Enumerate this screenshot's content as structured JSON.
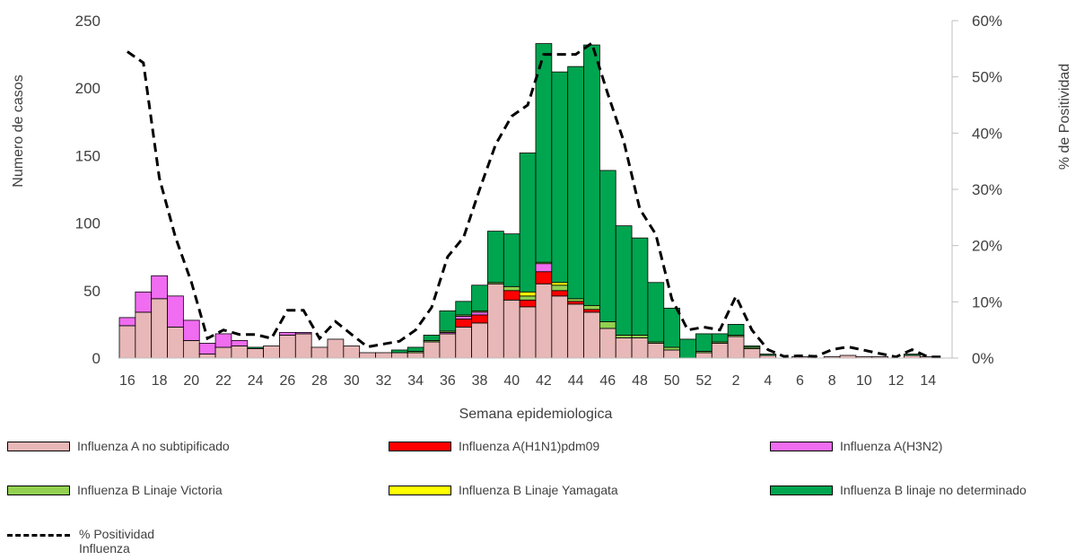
{
  "colors": {
    "influenza_a_no_subtip": "#e8b7b7",
    "h1n1": "#ff0000",
    "h3n2": "#f06cf0",
    "victoria": "#92d050",
    "yamagata": "#ffff00",
    "b_no_det": "#00a550",
    "line": "#000000"
  },
  "legend": [
    {
      "key": "a_nosub",
      "label": "Influenza A no subtipificado",
      "color": "#e8b7b7",
      "kind": "swatch"
    },
    {
      "key": "h1n1",
      "label": "Influenza A(H1N1)pdm09",
      "color": "#ff0000",
      "kind": "swatch"
    },
    {
      "key": "h3n2",
      "label": "Influenza A(H3N2)",
      "color": "#f06cf0",
      "kind": "swatch"
    },
    {
      "key": "victoria",
      "label": "Influenza B Linaje Victoria",
      "color": "#92d050",
      "kind": "swatch"
    },
    {
      "key": "yamagata",
      "label": "Influenza B Linaje Yamagata",
      "color": "#ffff00",
      "kind": "swatch"
    },
    {
      "key": "bnd",
      "label": "Influenza B linaje no determinado",
      "color": "#00a550",
      "kind": "swatch"
    },
    {
      "key": "pos",
      "label": "% Positividad",
      "label2": "Influenza",
      "kind": "dash"
    }
  ],
  "chart_data": {
    "type": "bar",
    "stacked": true,
    "xlabel": "Semana epidemiologica",
    "ylabel": "Numero de casos",
    "y2label": "% de Positividad",
    "ylim": [
      0,
      250
    ],
    "y2lim": [
      0,
      60
    ],
    "yticks": [
      0,
      50,
      100,
      150,
      200,
      250
    ],
    "y2ticks": [
      "0%",
      "10%",
      "20%",
      "30%",
      "40%",
      "50%",
      "60%"
    ],
    "categories": [
      "16",
      "17",
      "18",
      "19",
      "20",
      "21",
      "22",
      "23",
      "24",
      "25",
      "26",
      "27",
      "28",
      "29",
      "30",
      "31",
      "32",
      "33",
      "34",
      "35",
      "36",
      "37",
      "38",
      "39",
      "40",
      "41",
      "42",
      "43",
      "44",
      "45",
      "46",
      "47",
      "48",
      "49",
      "50",
      "51",
      "52",
      "1",
      "2",
      "3",
      "4",
      "5",
      "6",
      "7",
      "8",
      "9",
      "10",
      "11",
      "12",
      "13",
      "14",
      "15"
    ],
    "x_tick_labels": [
      "16",
      "18",
      "20",
      "22",
      "24",
      "26",
      "28",
      "30",
      "32",
      "34",
      "36",
      "38",
      "40",
      "42",
      "44",
      "46",
      "48",
      "50",
      "52",
      "2",
      "4",
      "6",
      "8",
      "10",
      "12",
      "14"
    ],
    "series": [
      {
        "name": "Influenza A no subtipificado",
        "color": "#e8b7b7",
        "values": [
          24,
          34,
          44,
          23,
          13,
          3,
          8,
          9,
          7,
          9,
          17,
          18,
          8,
          14,
          9,
          4,
          4,
          4,
          4,
          12,
          18,
          23,
          26,
          55,
          43,
          38,
          55,
          46,
          40,
          34,
          22,
          15,
          15,
          11,
          6,
          0,
          4,
          11,
          16,
          7,
          2,
          0,
          1,
          0,
          1,
          2,
          1,
          1,
          0,
          2,
          1,
          0
        ]
      },
      {
        "name": "Influenza A(H1N1)pdm09",
        "color": "#ff0000",
        "values": [
          0,
          0,
          0,
          0,
          0,
          0,
          0,
          0,
          0,
          0,
          0,
          0,
          0,
          0,
          0,
          0,
          0,
          0,
          0,
          0,
          0,
          6,
          6,
          0,
          7,
          5,
          9,
          4,
          2,
          2,
          0,
          0,
          0,
          0,
          0,
          0,
          0,
          0,
          0,
          0,
          0,
          0,
          0,
          0,
          0,
          0,
          0,
          0,
          0,
          0,
          0,
          0
        ]
      },
      {
        "name": "Influenza A(H3N2)",
        "color": "#f06cf0",
        "values": [
          6,
          15,
          17,
          23,
          15,
          8,
          10,
          4,
          0,
          0,
          2,
          1,
          0,
          0,
          0,
          0,
          0,
          0,
          0,
          0,
          1,
          2,
          2,
          0,
          0,
          0,
          6,
          0,
          0,
          0,
          0,
          0,
          0,
          0,
          0,
          0,
          0,
          0,
          0,
          0,
          0,
          0,
          0,
          0,
          0,
          0,
          0,
          0,
          0,
          0,
          0,
          0
        ]
      },
      {
        "name": "Influenza B Linaje Victoria",
        "color": "#92d050",
        "values": [
          0,
          0,
          0,
          0,
          0,
          0,
          0,
          0,
          0,
          0,
          0,
          0,
          0,
          0,
          0,
          0,
          0,
          0,
          1,
          1,
          1,
          1,
          1,
          1,
          3,
          3,
          1,
          4,
          2,
          3,
          5,
          2,
          2,
          1,
          2,
          0,
          1,
          1,
          1,
          1,
          0,
          0,
          0,
          0,
          0,
          0,
          0,
          0,
          0,
          0,
          0,
          0
        ]
      },
      {
        "name": "Influenza B Linaje Yamagata",
        "color": "#ffff00",
        "values": [
          0,
          0,
          0,
          0,
          0,
          0,
          0,
          0,
          0,
          0,
          0,
          0,
          0,
          0,
          0,
          0,
          0,
          0,
          0,
          0,
          0,
          0,
          0,
          0,
          0,
          3,
          0,
          2,
          0,
          0,
          0,
          0,
          0,
          0,
          0,
          0,
          0,
          0,
          0,
          0,
          0,
          0,
          0,
          0,
          0,
          0,
          0,
          0,
          0,
          0,
          0,
          0
        ]
      },
      {
        "name": "Influenza B linaje no determinado",
        "color": "#00a550",
        "values": [
          0,
          0,
          0,
          0,
          0,
          0,
          0,
          0,
          1,
          0,
          0,
          0,
          0,
          0,
          0,
          0,
          0,
          2,
          3,
          4,
          15,
          10,
          19,
          38,
          39,
          103,
          162,
          156,
          172,
          193,
          112,
          81,
          72,
          44,
          29,
          14,
          13,
          6,
          8,
          1,
          1,
          0,
          0,
          0,
          0,
          0,
          0,
          0,
          0,
          1,
          0,
          0
        ]
      }
    ],
    "line": {
      "name": "% Positividad Influenza",
      "color": "#000000",
      "style": "dashed",
      "axis": "y2",
      "values": [
        54.5,
        52.5,
        32,
        21.5,
        13.5,
        3.5,
        5,
        4.2,
        4.2,
        3.5,
        8.5,
        8.5,
        3.5,
        6.5,
        4.2,
        2,
        2.5,
        3,
        5,
        9,
        18,
        21.5,
        30,
        38,
        43,
        45,
        54,
        54,
        54,
        56,
        47,
        38.5,
        26.5,
        22,
        10.5,
        5,
        5.5,
        5,
        11,
        5,
        1.5,
        0.3,
        0.4,
        0.3,
        1.5,
        2,
        1.4,
        0.8,
        0.2,
        1.5,
        0.2,
        0.2
      ]
    }
  }
}
